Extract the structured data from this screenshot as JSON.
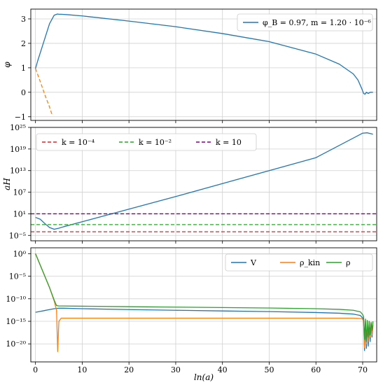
{
  "xlabel": "ln(a)",
  "x_ticks": [
    0,
    10,
    20,
    30,
    40,
    50,
    60,
    70
  ],
  "xlim": [
    -1,
    73
  ],
  "colors": {
    "blue": "#1f77b4",
    "orange": "#ff7f0e",
    "green": "#2ca02c",
    "red": "#d62728",
    "purple": "#800080"
  },
  "chart_data": [
    {
      "type": "line",
      "ylabel": "φ",
      "ylim": [
        -1.15,
        3.4
      ],
      "y_ticks": [
        -1,
        0,
        1,
        2,
        3
      ],
      "grid": true,
      "legend_position": "top-right",
      "series": [
        {
          "name": "φ_B = 0.97, m = 1.20 · 10⁻⁶",
          "color": "blue",
          "dash": "solid",
          "x": [
            0,
            0.5,
            1,
            2,
            3,
            4,
            4.7,
            5,
            5.5,
            7,
            10,
            20,
            30,
            40,
            50,
            60,
            65,
            68,
            69,
            69.8,
            70.2,
            70.5,
            70.8,
            71.2,
            71.6,
            72.2
          ],
          "y": [
            0.97,
            1.3,
            1.6,
            2.2,
            2.8,
            3.15,
            3.2,
            3.19,
            3.19,
            3.17,
            3.12,
            2.91,
            2.68,
            2.4,
            2.07,
            1.56,
            1.15,
            0.75,
            0.5,
            0.15,
            -0.05,
            -0.08,
            0.0,
            -0.05,
            0.0,
            0.0
          ]
        },
        {
          "name": "",
          "color": "orange",
          "dash": "dashed",
          "x": [
            0,
            1,
            2,
            3,
            3.6
          ],
          "y": [
            0.97,
            0.45,
            -0.1,
            -0.6,
            -0.95
          ]
        }
      ]
    },
    {
      "type": "line",
      "ylabel": "aH",
      "log": true,
      "ylim_exp": [
        -6.5,
        25
      ],
      "y_ticks_exp": [
        -5,
        1,
        7,
        13,
        19,
        25
      ],
      "grid": true,
      "legend_position": "top-left",
      "series": [
        {
          "name": "",
          "color": "blue",
          "dash": "solid",
          "x": [
            0,
            1,
            2,
            3,
            4,
            5,
            6,
            10,
            20,
            30,
            40,
            50,
            60,
            70,
            71,
            72.2
          ],
          "y_exp": [
            0,
            -0.5,
            -1.7,
            -2.8,
            -3.3,
            -3.0,
            -2.6,
            -1.2,
            2.3,
            5.8,
            9.4,
            13.0,
            16.6,
            23.4,
            23.5,
            23.1
          ]
        },
        {
          "name": "k = 10⁻⁴",
          "color": "red",
          "dash": "dashed",
          "x": [
            -1,
            73
          ],
          "y_exp": [
            -4,
            -4
          ]
        },
        {
          "name": "k = 10⁻²",
          "color": "green",
          "dash": "dashed",
          "x": [
            -1,
            73
          ],
          "y_exp": [
            -2,
            -2
          ]
        },
        {
          "name": "k = 10",
          "color": "purple",
          "dash": "dashed",
          "x": [
            -1,
            73
          ],
          "y_exp": [
            1,
            1
          ]
        }
      ]
    },
    {
      "type": "line",
      "ylabel": "",
      "log": true,
      "ylim_exp": [
        -24,
        1.3
      ],
      "y_ticks_exp": [
        0,
        -5,
        -10,
        -15,
        -20
      ],
      "grid": true,
      "legend_position": "top-right",
      "series": [
        {
          "name": "V",
          "color": "blue",
          "dash": "solid",
          "x": [
            0,
            1,
            2,
            3,
            4,
            5,
            6,
            10,
            20,
            30,
            40,
            50,
            60,
            65,
            68,
            69.5,
            70.2,
            70.4,
            70.6,
            70.8,
            71.0,
            71.2,
            71.4,
            71.6,
            71.8,
            72.0,
            72.2
          ],
          "y_exp": [
            -13,
            -12.8,
            -12.6,
            -12.4,
            -12.2,
            -12.1,
            -12.1,
            -12.2,
            -12.4,
            -12.55,
            -12.7,
            -12.85,
            -13.05,
            -13.2,
            -13.4,
            -13.7,
            -14.5,
            -21.5,
            -16,
            -21,
            -15.5,
            -20.5,
            -15.8,
            -19.5,
            -15.5,
            -18.5,
            -15.8
          ]
        },
        {
          "name": "ρ_kin",
          "color": "orange",
          "dash": "solid",
          "x": [
            0,
            1,
            2,
            3,
            4,
            4.5,
            4.75,
            5,
            5.5,
            10,
            20,
            30,
            40,
            50,
            60,
            65,
            68,
            69.8,
            70.2,
            70.4,
            70.6,
            70.8,
            71.0,
            71.2,
            71.4,
            71.6,
            71.8,
            72.0,
            72.2
          ],
          "y_exp": [
            0,
            -2.5,
            -5,
            -7.5,
            -10.5,
            -12.5,
            -21.7,
            -15.0,
            -14.3,
            -14.3,
            -14.3,
            -14.3,
            -14.3,
            -14.3,
            -14.3,
            -14.3,
            -14.3,
            -14.4,
            -14.8,
            -20.8,
            -15.0,
            -20.0,
            -15.2,
            -19.5,
            -15.0,
            -18.5,
            -15.5,
            -18.0,
            -15.2
          ]
        },
        {
          "name": "ρ",
          "color": "green",
          "dash": "solid",
          "x": [
            0,
            1,
            2,
            3,
            4,
            4.5,
            5,
            6,
            10,
            20,
            30,
            40,
            50,
            60,
            65,
            68,
            69.5,
            70,
            70.2,
            70.4,
            70.6,
            70.8,
            71.0,
            71.2,
            71.4,
            71.6,
            71.8,
            72.0,
            72.2
          ],
          "y_exp": [
            0,
            -2.5,
            -5,
            -7.5,
            -10.3,
            -11.5,
            -11.6,
            -11.6,
            -11.65,
            -11.75,
            -11.85,
            -11.95,
            -12.05,
            -12.2,
            -12.35,
            -12.55,
            -12.9,
            -13.5,
            -14.0,
            -19.0,
            -14.5,
            -19.5,
            -14.8,
            -18.5,
            -15.0,
            -18.0,
            -15.2,
            -17.0,
            -15.0
          ]
        }
      ]
    }
  ]
}
